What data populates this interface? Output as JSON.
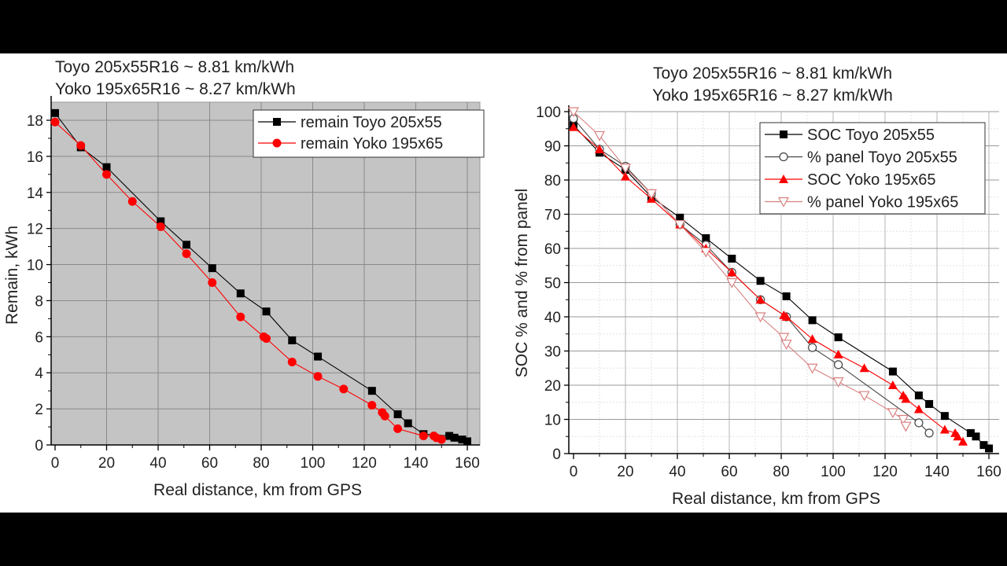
{
  "chart_data": [
    {
      "type": "line",
      "title_lines": [
        "Toyo 205x55R16 ~ 8.81 km/kWh",
        "Yoko 195x65R16 ~ 8.27 km/kWh"
      ],
      "xlabel": "Real distance, km from GPS",
      "ylabel": "Remain, kWh",
      "xlim": [
        0,
        160
      ],
      "ylim": [
        0,
        18
      ],
      "xticks": [
        "0",
        "20",
        "40",
        "60",
        "80",
        "100",
        "120",
        "140",
        "160"
      ],
      "yticks": [
        "0",
        "2",
        "4",
        "6",
        "8",
        "10",
        "12",
        "14",
        "16",
        "18"
      ],
      "grid": true,
      "background": "#c4c4c4",
      "legend_position": "top-right",
      "series": [
        {
          "name": "remain Toyo 205x55",
          "color": "#000000",
          "marker": "square-filled",
          "x": [
            0,
            10,
            20,
            41,
            51,
            61,
            72,
            82,
            92,
            102,
            123,
            133,
            137,
            143,
            153,
            155,
            158,
            160
          ],
          "y": [
            18.4,
            16.5,
            15.4,
            12.4,
            11.1,
            9.8,
            8.4,
            7.4,
            5.8,
            4.9,
            3.0,
            1.7,
            1.2,
            0.6,
            0.5,
            0.4,
            0.3,
            0.2
          ]
        },
        {
          "name": "remain Yoko 195x65",
          "color": "#ff0000",
          "marker": "circle-filled",
          "x": [
            0,
            10,
            20,
            30,
            41,
            51,
            61,
            72,
            81,
            82,
            92,
            102,
            112,
            123,
            127,
            128,
            133,
            143,
            147,
            148,
            150
          ],
          "y": [
            17.9,
            16.6,
            15.0,
            13.5,
            12.1,
            10.6,
            9.0,
            7.1,
            6.0,
            5.9,
            4.6,
            3.8,
            3.1,
            2.2,
            1.8,
            1.6,
            0.9,
            0.5,
            0.5,
            0.4,
            0.3
          ]
        }
      ]
    },
    {
      "type": "line",
      "title_lines": [
        "Toyo 205x55R16 ~ 8.81 km/kWh",
        "Yoko 195x65R16 ~ 8.27 km/kWh"
      ],
      "xlabel": "Real distance, km from GPS",
      "ylabel": "SOC % and % from panel",
      "xlim": [
        0,
        160
      ],
      "ylim": [
        0,
        100
      ],
      "xticks": [
        "0",
        "20",
        "40",
        "60",
        "80",
        "100",
        "120",
        "140",
        "160"
      ],
      "yticks": [
        "0",
        "10",
        "20",
        "30",
        "40",
        "50",
        "60",
        "70",
        "80",
        "90",
        "100"
      ],
      "grid": true,
      "background": "#ffffff",
      "legend_position": "top-right",
      "series": [
        {
          "name": "SOC Toyo 205x55",
          "color": "#000000",
          "marker": "square-filled",
          "x": [
            0,
            10,
            20,
            30,
            41,
            51,
            61,
            72,
            82,
            92,
            102,
            123,
            133,
            137,
            143,
            153,
            155,
            158,
            160
          ],
          "y": [
            96,
            88,
            83,
            75,
            69,
            63,
            57,
            50.5,
            46,
            39,
            34,
            24,
            17,
            14.5,
            11,
            6,
            5,
            2.5,
            1.5
          ]
        },
        {
          "name": "% panel Toyo 205x55",
          "color": "#444444",
          "marker": "circle-open",
          "x": [
            0,
            10,
            20,
            30,
            41,
            51,
            61,
            72,
            82,
            92,
            102,
            133,
            137
          ],
          "y": [
            98,
            89,
            84,
            76,
            67,
            61,
            53,
            45,
            40,
            31,
            26,
            9,
            6
          ]
        },
        {
          "name": "SOC Yoko 195x65",
          "color": "#ff0000",
          "marker": "triangle-up-filled",
          "x": [
            0,
            10,
            20,
            30,
            41,
            51,
            61,
            72,
            81,
            82,
            92,
            102,
            112,
            123,
            127,
            128,
            133,
            143,
            147,
            148,
            150
          ],
          "y": [
            95.5,
            89,
            81,
            74.5,
            67,
            60,
            53,
            45,
            40.5,
            40,
            33.5,
            29,
            25,
            20,
            17,
            16,
            13,
            7,
            6,
            5,
            3.5
          ]
        },
        {
          "name": "% panel Yoko 195x65",
          "color": "#d98080",
          "marker": "triangle-down-open",
          "x": [
            0,
            10,
            20,
            30,
            41,
            51,
            61,
            72,
            81,
            82,
            92,
            102,
            112,
            123,
            127,
            128
          ],
          "y": [
            100,
            93,
            83.5,
            76,
            67,
            59,
            50,
            40,
            34,
            32,
            25,
            21,
            17,
            12,
            10,
            8
          ]
        }
      ]
    }
  ]
}
